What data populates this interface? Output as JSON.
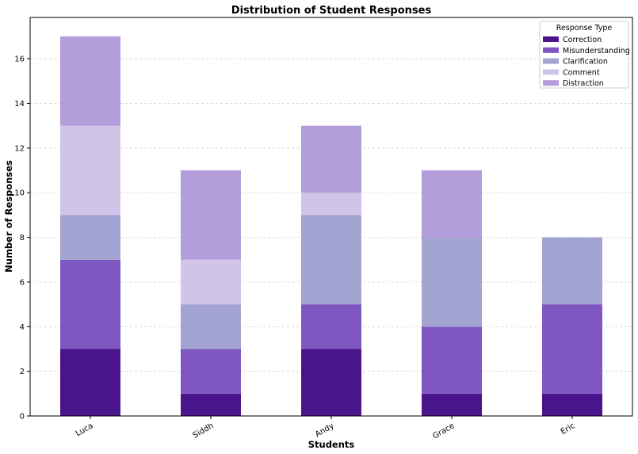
{
  "chart_data": {
    "type": "bar",
    "stacked": true,
    "title": "Distribution of Student Responses",
    "xlabel": "Students",
    "ylabel": "Number of Responses",
    "categories": [
      "Luca",
      "Siddh",
      "Andy",
      "Grace",
      "Eric"
    ],
    "ylim": [
      0,
      17.85
    ],
    "yticks": [
      0,
      2,
      4,
      6,
      8,
      10,
      12,
      14,
      16
    ],
    "grid": "y-dashed",
    "legend": {
      "title": "Response Type",
      "placement": "top-right"
    },
    "series": [
      {
        "name": "Correction",
        "color": "#4a148c",
        "values": [
          3,
          1,
          3,
          1,
          1
        ]
      },
      {
        "name": "Misunderstanding",
        "color": "#7e57c2",
        "values": [
          4,
          2,
          2,
          3,
          4
        ]
      },
      {
        "name": "Clarification",
        "color": "#a3a4d2",
        "values": [
          2,
          2,
          4,
          4,
          3
        ]
      },
      {
        "name": "Comment",
        "color": "#d1c4e9",
        "values": [
          4,
          2,
          1,
          0,
          0
        ]
      },
      {
        "name": "Distraction",
        "color": "#b39ddb",
        "values": [
          4,
          4,
          3,
          3,
          0
        ]
      }
    ]
  }
}
